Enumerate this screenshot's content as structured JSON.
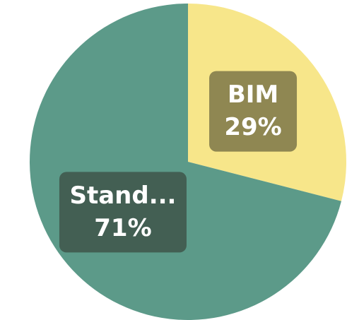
{
  "chart_data": {
    "type": "pie",
    "title": "",
    "start_angle_deg": 0,
    "direction": "clockwise",
    "slices": [
      {
        "label": "BIM",
        "display_label": "BIM",
        "value": 29,
        "percent_text": "29%",
        "color": "#f7e68a",
        "label_bg": "#8f8752"
      },
      {
        "label": "Stand...",
        "display_label": "Stand...",
        "value": 71,
        "percent_text": "71%",
        "color": "#5c9a89",
        "label_bg": "#435f53"
      }
    ]
  }
}
